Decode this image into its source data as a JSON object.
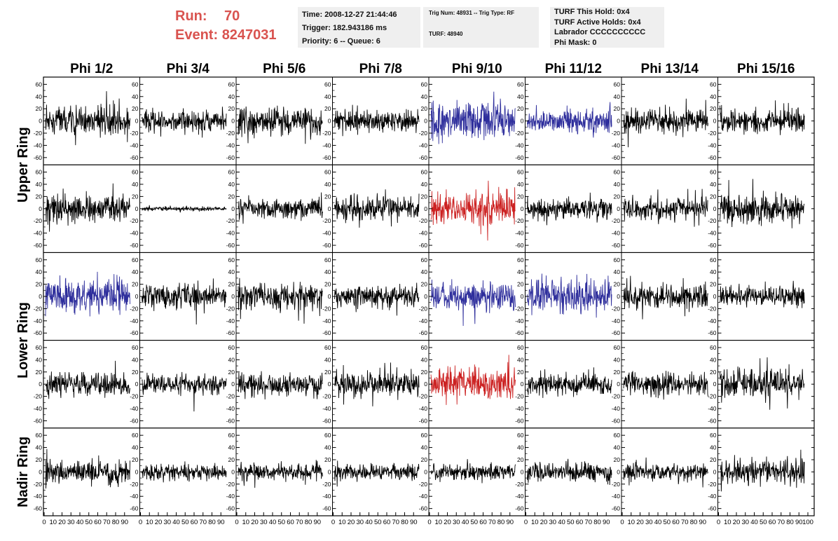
{
  "header": {
    "run_label": "Run:",
    "run_value": "70",
    "event_label": "Event:",
    "event_value": "8247031",
    "info1": [
      "Time: 2008-12-27 21:44:46",
      "Trigger: 182.943186 ms",
      "Priority: 6 -- Queue: 6"
    ],
    "info2_top": "Trig Num: 48931 -- Trig Type: RF",
    "info2_bottom": "TURF: 48940",
    "info3": [
      "TURF This Hold: 0x4",
      "TURF Active Holds: 0x4",
      "Labrador CCCCCCCCCC",
      "Phi Mask: 0"
    ]
  },
  "colors": {
    "header_red": "#d9534f",
    "trace_black": "#000000",
    "trace_blue": "#2e2e9c",
    "trace_red": "#cc2222",
    "info_bg": "#efefef"
  },
  "chart_data": {
    "type": "line",
    "column_titles": [
      "Phi 1/2",
      "Phi 3/4",
      "Phi 5/6",
      "Phi 7/8",
      "Phi 9/10",
      "Phi 11/12",
      "Phi 13/14",
      "Phi 15/16"
    ],
    "ring_labels": [
      "Upper Ring",
      "Lower Ring",
      "Nadir Ring"
    ],
    "ring_rows": [
      [
        0,
        1
      ],
      [
        2,
        3
      ],
      [
        4
      ]
    ],
    "ylim": [
      -65,
      65
    ],
    "yticks": [
      -60,
      -40,
      -20,
      0,
      20,
      40,
      60
    ],
    "xlim": [
      0,
      100
    ],
    "xticks": [
      0,
      10,
      20,
      30,
      40,
      50,
      60,
      70,
      80,
      90,
      100
    ],
    "samples": 260,
    "panels": [
      [
        {
          "color": "black",
          "amp": 22
        },
        {
          "color": "black",
          "amp": 15
        },
        {
          "color": "black",
          "amp": 18
        },
        {
          "color": "black",
          "amp": 17
        },
        {
          "color": "blue",
          "amp": 28
        },
        {
          "color": "blue",
          "amp": 17
        },
        {
          "color": "black",
          "amp": 19
        },
        {
          "color": "black",
          "amp": 17
        }
      ],
      [
        {
          "color": "black",
          "amp": 22
        },
        {
          "color": "black",
          "amp": 3
        },
        {
          "color": "black",
          "amp": 15
        },
        {
          "color": "black",
          "amp": 19
        },
        {
          "color": "red",
          "amp": 25
        },
        {
          "color": "black",
          "amp": 16
        },
        {
          "color": "black",
          "amp": 17
        },
        {
          "color": "black",
          "amp": 23
        }
      ],
      [
        {
          "color": "blue",
          "amp": 24
        },
        {
          "color": "black",
          "amp": 17
        },
        {
          "color": "black",
          "amp": 19
        },
        {
          "color": "black",
          "amp": 16
        },
        {
          "color": "blue",
          "amp": 20
        },
        {
          "color": "blue",
          "amp": 25
        },
        {
          "color": "black",
          "amp": 18
        },
        {
          "color": "black",
          "amp": 15
        }
      ],
      [
        {
          "color": "black",
          "amp": 18
        },
        {
          "color": "black",
          "amp": 14
        },
        {
          "color": "black",
          "amp": 17
        },
        {
          "color": "black",
          "amp": 19
        },
        {
          "color": "red",
          "amp": 23
        },
        {
          "color": "black",
          "amp": 16
        },
        {
          "color": "black",
          "amp": 17
        },
        {
          "color": "black",
          "amp": 22
        }
      ],
      [
        {
          "color": "black",
          "amp": 18
        },
        {
          "color": "black",
          "amp": 12
        },
        {
          "color": "black",
          "amp": 12
        },
        {
          "color": "black",
          "amp": 12
        },
        {
          "color": "black",
          "amp": 11
        },
        {
          "color": "black",
          "amp": 13
        },
        {
          "color": "black",
          "amp": 12
        },
        {
          "color": "black",
          "amp": 18
        }
      ]
    ]
  }
}
